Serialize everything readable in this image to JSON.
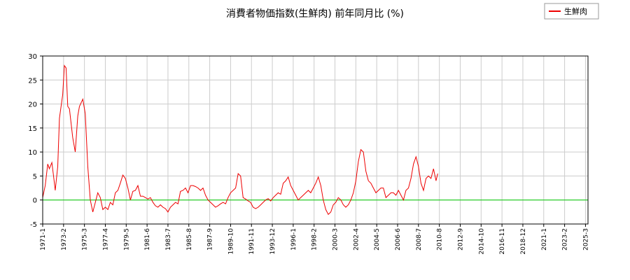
{
  "chart_data": {
    "type": "line",
    "title": "消費者物価指数(生鮮肉) 前年同月比 (%)",
    "ylim": [
      -5,
      30
    ],
    "yticks": [
      -5,
      0,
      5,
      10,
      15,
      20,
      25,
      30
    ],
    "xlim": [
      "1971-1",
      "2025-6"
    ],
    "xticks": [
      "1971-1",
      "1973-2",
      "1975-3",
      "1977-4",
      "1979-5",
      "1981-6",
      "1983-7",
      "1985-8",
      "1987-9",
      "1989-10",
      "1991-11",
      "1993-12",
      "1996-1",
      "1998-2",
      "2000-3",
      "2002-4",
      "2004-5",
      "2006-6",
      "2008-7",
      "2010-8",
      "2012-9",
      "2014-10",
      "2016-11",
      "2018-12",
      "2021-1",
      "2023-2",
      "2025-3"
    ],
    "grid": true,
    "legend_position": "top-right",
    "series": [
      {
        "name": "生鮮肉",
        "color": "#ee0000",
        "points": [
          [
            "1971-1",
            0.5
          ],
          [
            "1971-4",
            3.0
          ],
          [
            "1971-7",
            7.5
          ],
          [
            "1971-9",
            6.5
          ],
          [
            "1971-12",
            7.8
          ],
          [
            "1972-2",
            5.0
          ],
          [
            "1972-4",
            2.0
          ],
          [
            "1972-7",
            7.0
          ],
          [
            "1972-9",
            17.0
          ],
          [
            "1973-1",
            22.0
          ],
          [
            "1973-3",
            28.0
          ],
          [
            "1973-5",
            27.5
          ],
          [
            "1973-7",
            19.5
          ],
          [
            "1973-9",
            19.0
          ],
          [
            "1974-1",
            13.0
          ],
          [
            "1974-4",
            10.0
          ],
          [
            "1974-7",
            17.5
          ],
          [
            "1974-9",
            19.5
          ],
          [
            "1975-1",
            21.0
          ],
          [
            "1975-4",
            18.0
          ],
          [
            "1975-7",
            7.0
          ],
          [
            "1975-10",
            0.0
          ],
          [
            "1976-1",
            -2.5
          ],
          [
            "1976-4",
            -0.5
          ],
          [
            "1976-7",
            1.5
          ],
          [
            "1976-10",
            0.5
          ],
          [
            "1977-1",
            -2.0
          ],
          [
            "1977-4",
            -1.5
          ],
          [
            "1977-7",
            -2.0
          ],
          [
            "1977-10",
            -0.5
          ],
          [
            "1978-1",
            -1.0
          ],
          [
            "1978-4",
            1.5
          ],
          [
            "1978-7",
            2.0
          ],
          [
            "1978-10",
            3.5
          ],
          [
            "1979-1",
            5.2
          ],
          [
            "1979-4",
            4.5
          ],
          [
            "1979-7",
            2.5
          ],
          [
            "1979-10",
            0.0
          ],
          [
            "1980-1",
            1.8
          ],
          [
            "1980-4",
            2.0
          ],
          [
            "1980-7",
            3.0
          ],
          [
            "1980-10",
            0.8
          ],
          [
            "1981-1",
            0.8
          ],
          [
            "1981-4",
            0.5
          ],
          [
            "1981-7",
            0.2
          ],
          [
            "1981-10",
            0.5
          ],
          [
            "1982-1",
            -0.5
          ],
          [
            "1982-4",
            -1.2
          ],
          [
            "1982-7",
            -1.5
          ],
          [
            "1982-10",
            -1.0
          ],
          [
            "1983-1",
            -1.5
          ],
          [
            "1983-4",
            -1.8
          ],
          [
            "1983-7",
            -2.5
          ],
          [
            "1983-10",
            -1.5
          ],
          [
            "1984-1",
            -1.0
          ],
          [
            "1984-4",
            -0.5
          ],
          [
            "1984-7",
            -0.8
          ],
          [
            "1984-10",
            1.8
          ],
          [
            "1985-1",
            2.0
          ],
          [
            "1985-4",
            2.5
          ],
          [
            "1985-7",
            1.5
          ],
          [
            "1985-10",
            3.0
          ],
          [
            "1986-1",
            3.0
          ],
          [
            "1986-4",
            2.8
          ],
          [
            "1986-7",
            2.5
          ],
          [
            "1986-10",
            2.0
          ],
          [
            "1987-1",
            2.5
          ],
          [
            "1987-4",
            1.0
          ],
          [
            "1987-7",
            0.0
          ],
          [
            "1987-10",
            -0.5
          ],
          [
            "1988-1",
            -1.0
          ],
          [
            "1988-4",
            -1.5
          ],
          [
            "1988-7",
            -1.2
          ],
          [
            "1988-10",
            -0.8
          ],
          [
            "1989-1",
            -0.5
          ],
          [
            "1989-4",
            -0.8
          ],
          [
            "1989-7",
            0.5
          ],
          [
            "1989-10",
            1.5
          ],
          [
            "1990-1",
            2.0
          ],
          [
            "1990-4",
            2.5
          ],
          [
            "1990-7",
            5.5
          ],
          [
            "1990-10",
            5.0
          ],
          [
            "1991-1",
            0.5
          ],
          [
            "1991-4",
            0.2
          ],
          [
            "1991-7",
            -0.2
          ],
          [
            "1991-10",
            -0.5
          ],
          [
            "1992-1",
            -1.5
          ],
          [
            "1992-4",
            -1.8
          ],
          [
            "1992-7",
            -1.5
          ],
          [
            "1992-10",
            -1.0
          ],
          [
            "1993-1",
            -0.5
          ],
          [
            "1993-4",
            0.0
          ],
          [
            "1993-7",
            0.3
          ],
          [
            "1993-10",
            -0.2
          ],
          [
            "1994-1",
            0.5
          ],
          [
            "1994-4",
            1.0
          ],
          [
            "1994-7",
            1.5
          ],
          [
            "1994-10",
            1.2
          ],
          [
            "1995-1",
            3.5
          ],
          [
            "1995-4",
            4.0
          ],
          [
            "1995-7",
            4.8
          ],
          [
            "1995-10",
            3.0
          ],
          [
            "1996-1",
            2.0
          ],
          [
            "1996-4",
            1.0
          ],
          [
            "1996-7",
            0.0
          ],
          [
            "1996-10",
            0.5
          ],
          [
            "1997-1",
            1.0
          ],
          [
            "1997-4",
            1.5
          ],
          [
            "1997-7",
            2.0
          ],
          [
            "1997-10",
            1.5
          ],
          [
            "1998-1",
            2.5
          ],
          [
            "1998-4",
            3.5
          ],
          [
            "1998-7",
            4.8
          ],
          [
            "1998-10",
            3.0
          ],
          [
            "1999-1",
            0.0
          ],
          [
            "1999-4",
            -2.0
          ],
          [
            "1999-7",
            -3.0
          ],
          [
            "1999-10",
            -2.5
          ],
          [
            "2000-1",
            -1.0
          ],
          [
            "2000-4",
            -0.5
          ],
          [
            "2000-7",
            0.5
          ],
          [
            "2000-10",
            0.0
          ],
          [
            "2001-1",
            -1.0
          ],
          [
            "2001-4",
            -1.5
          ],
          [
            "2001-7",
            -1.0
          ],
          [
            "2001-10",
            0.0
          ],
          [
            "2002-1",
            1.5
          ],
          [
            "2002-4",
            4.0
          ],
          [
            "2002-7",
            8.0
          ],
          [
            "2002-10",
            10.5
          ],
          [
            "2003-1",
            10.0
          ],
          [
            "2003-4",
            6.0
          ],
          [
            "2003-7",
            4.0
          ],
          [
            "2003-10",
            3.5
          ],
          [
            "2004-1",
            2.5
          ],
          [
            "2004-4",
            1.5
          ],
          [
            "2004-7",
            2.0
          ],
          [
            "2004-10",
            2.5
          ],
          [
            "2005-1",
            2.5
          ],
          [
            "2005-4",
            0.5
          ],
          [
            "2005-7",
            1.0
          ],
          [
            "2005-10",
            1.5
          ],
          [
            "2006-1",
            1.5
          ],
          [
            "2006-4",
            1.0
          ],
          [
            "2006-7",
            2.0
          ],
          [
            "2006-10",
            1.0
          ],
          [
            "2007-1",
            0.0
          ],
          [
            "2007-4",
            2.0
          ],
          [
            "2007-7",
            2.5
          ],
          [
            "2007-10",
            4.5
          ],
          [
            "2008-1",
            7.5
          ],
          [
            "2008-4",
            9.0
          ],
          [
            "2008-7",
            7.0
          ],
          [
            "2008-10",
            3.5
          ],
          [
            "2009-1",
            2.0
          ],
          [
            "2009-4",
            4.5
          ],
          [
            "2009-7",
            5.0
          ],
          [
            "2009-10",
            4.5
          ],
          [
            "2010-1",
            6.5
          ],
          [
            "2010-4",
            4.0
          ],
          [
            "2010-6",
            5.5
          ]
        ]
      }
    ],
    "reference_line": {
      "y": 0,
      "color": "#00cc00"
    }
  }
}
